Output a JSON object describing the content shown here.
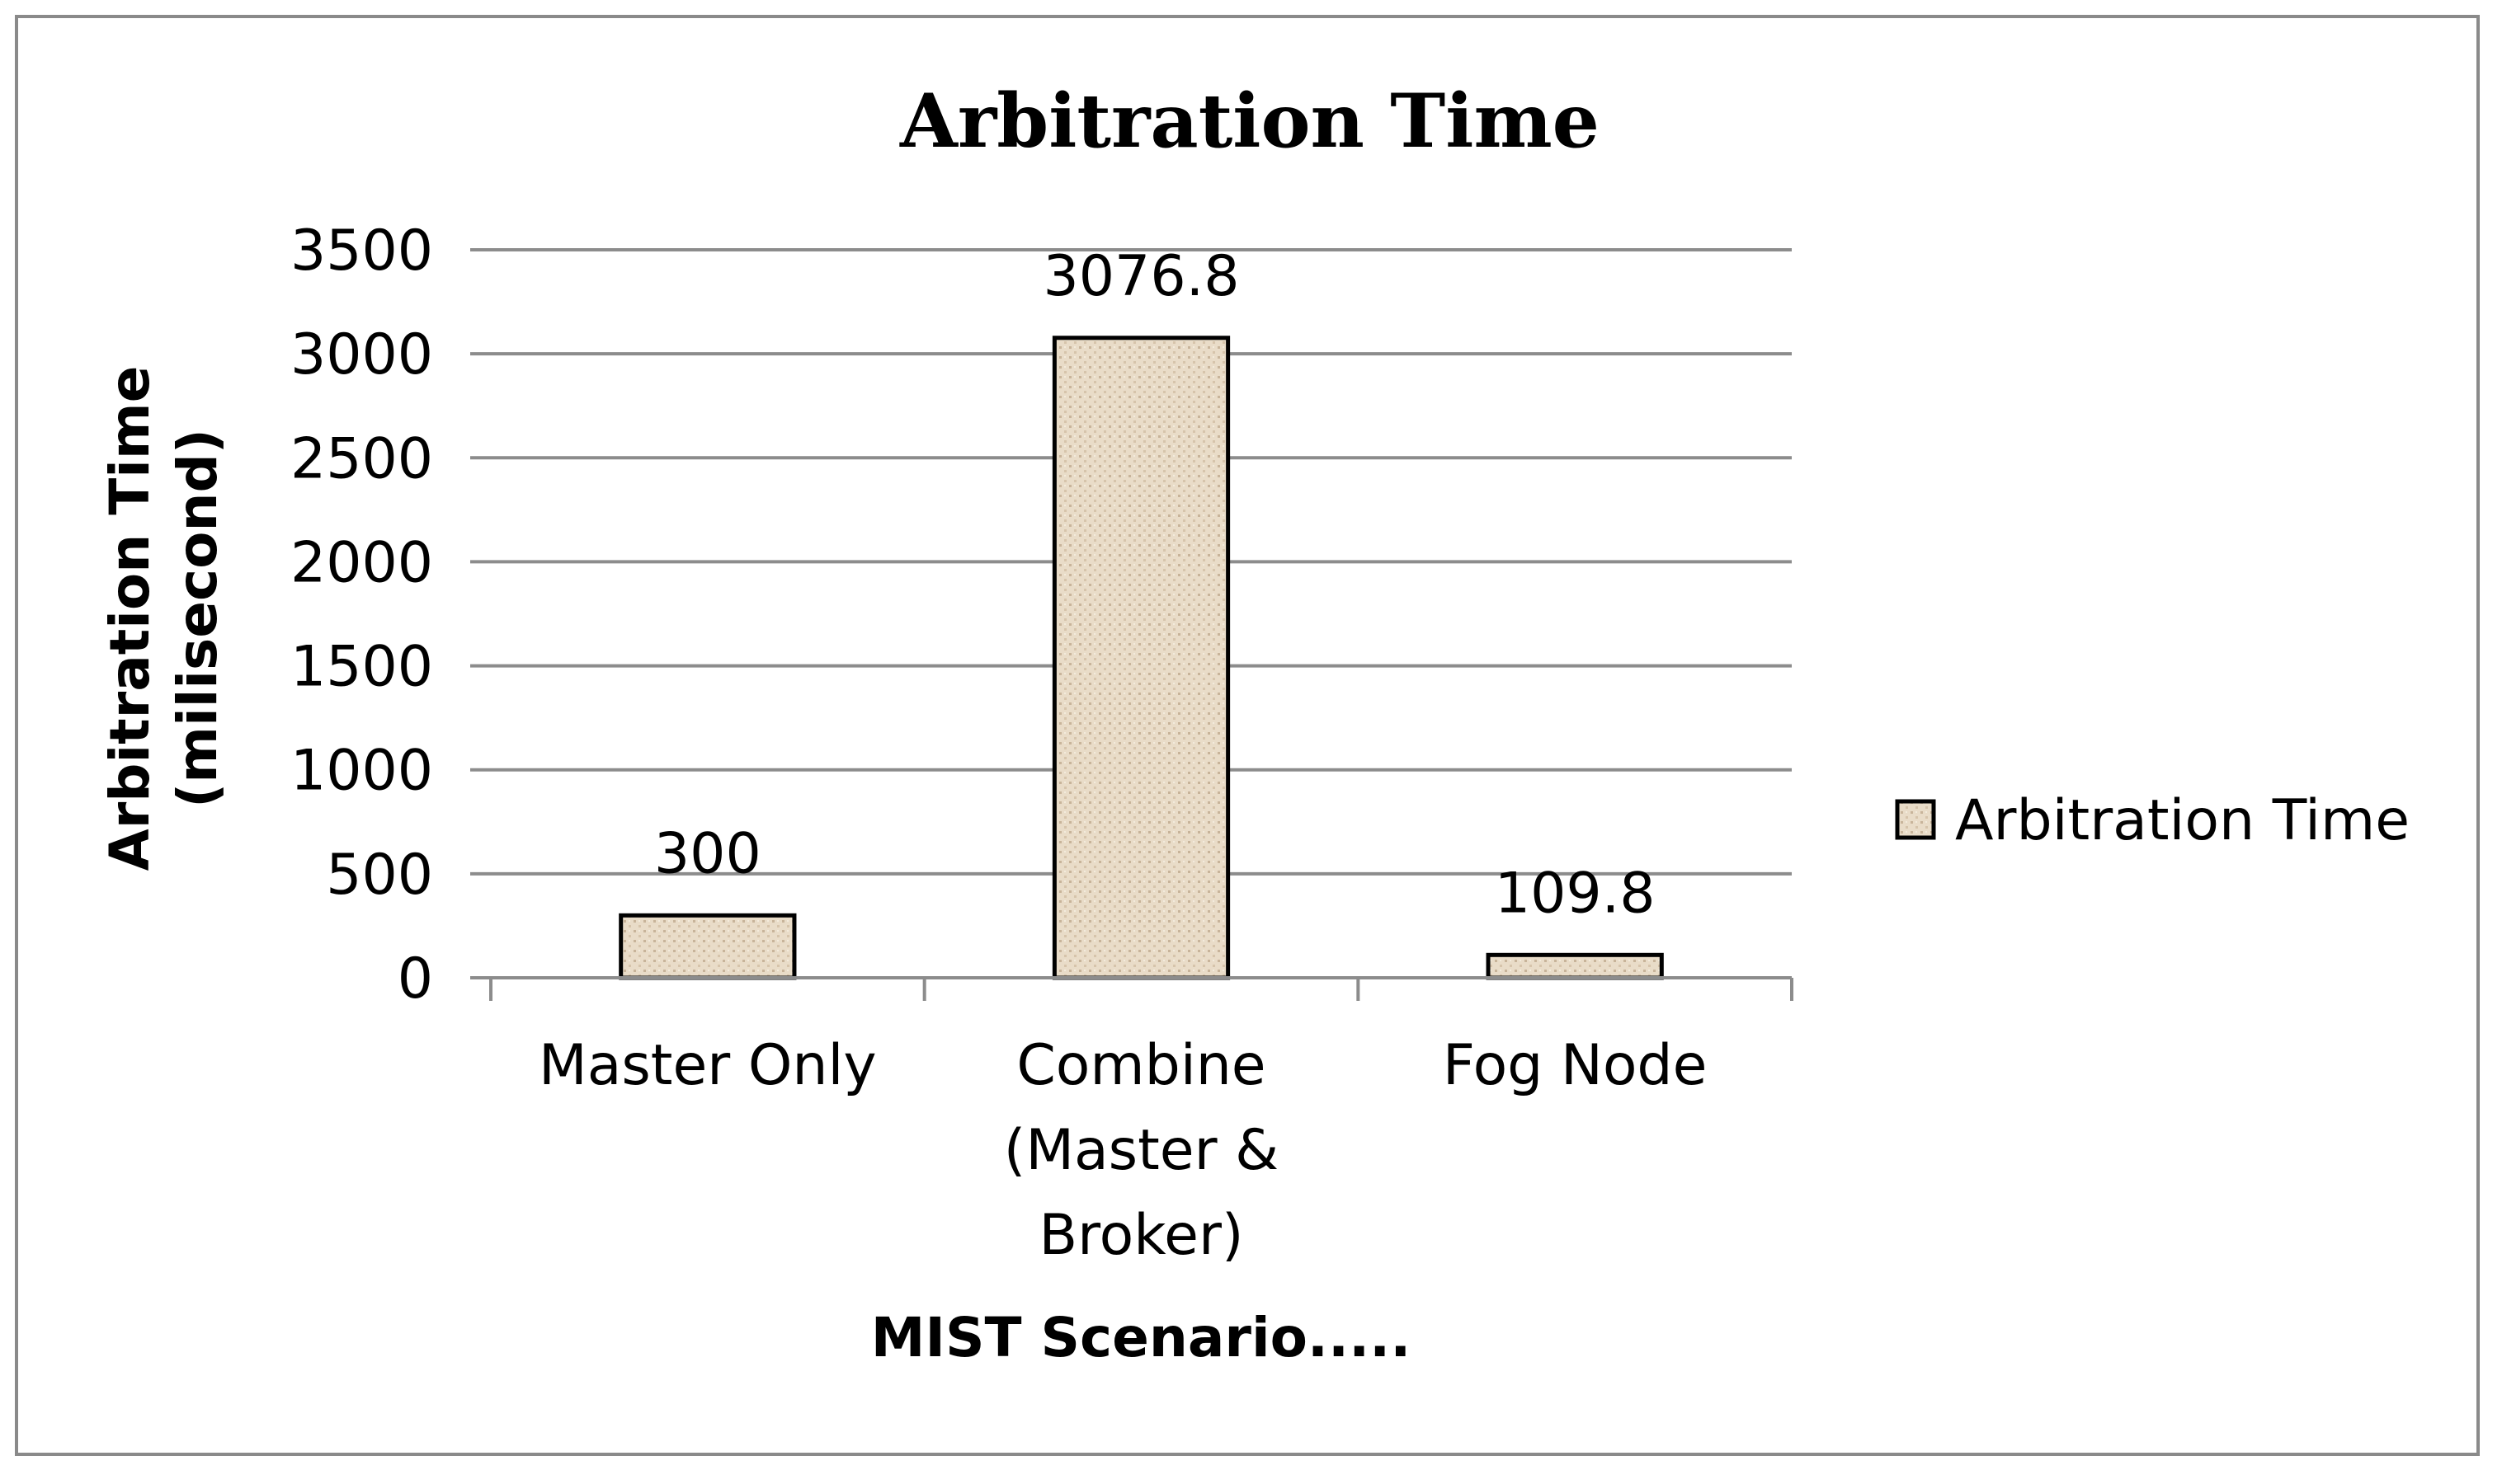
{
  "chart_data": {
    "type": "bar",
    "title": "Arbitration Time",
    "categories": [
      [
        "Master Only"
      ],
      [
        "Combine",
        "(Master &",
        "Broker)"
      ],
      [
        "Fog Node"
      ]
    ],
    "series": [
      {
        "name": "Arbitration Time",
        "values": [
          300,
          3076.8,
          109.8
        ],
        "color": "#e9dcc8"
      }
    ],
    "data_labels": [
      "300",
      "3076.8",
      "109.8"
    ],
    "xlabel": "MIST Scenario.....",
    "ylabel": [
      "Arbitration Time",
      "(milisecond)"
    ],
    "ylim": [
      0,
      3500
    ],
    "yticks": [
      0,
      500,
      1000,
      1500,
      2000,
      2500,
      3000,
      3500
    ],
    "grid": true,
    "legend_position": "right"
  }
}
